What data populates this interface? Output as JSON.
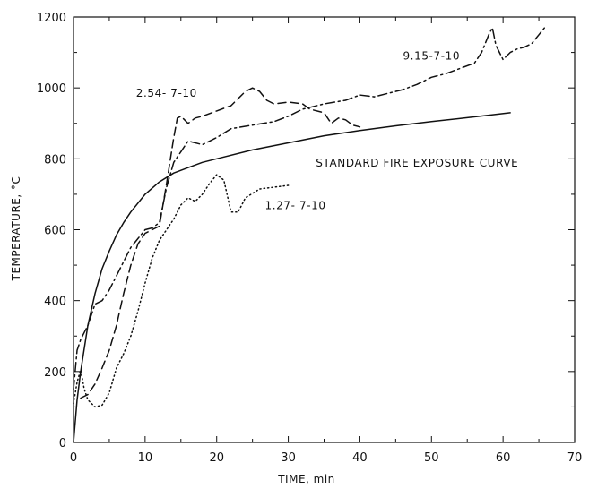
{
  "chart_data": {
    "type": "line",
    "xlabel": "TIME, min",
    "ylabel": "TEMPERATURE, °C",
    "xlim": [
      0,
      70
    ],
    "ylim": [
      0,
      1200
    ],
    "xticks": [
      0,
      10,
      20,
      30,
      40,
      50,
      60,
      70
    ],
    "yticks": [
      0,
      200,
      400,
      600,
      800,
      1000,
      1200
    ],
    "grid": false,
    "series": [
      {
        "name": "STANDARD FIRE EXPOSURE CURVE",
        "style": "solid",
        "x": [
          0,
          0.5,
          1,
          2,
          3,
          4,
          5,
          6,
          7,
          8,
          10,
          12,
          14,
          16,
          18,
          20,
          25,
          30,
          35,
          40,
          45,
          50,
          55,
          61
        ],
        "y": [
          0,
          120,
          200,
          330,
          420,
          490,
          540,
          585,
          620,
          650,
          700,
          735,
          760,
          775,
          790,
          800,
          825,
          845,
          865,
          880,
          893,
          905,
          916,
          930
        ]
      },
      {
        "name": "2.54-7-10",
        "style": "dashed",
        "x": [
          1,
          2,
          3,
          4,
          5,
          6,
          7,
          8,
          9,
          10,
          11,
          12,
          13,
          14,
          14.5,
          15,
          16,
          17,
          18,
          20,
          22,
          24,
          25,
          26,
          27,
          28,
          30,
          32,
          33,
          35,
          36,
          37,
          38,
          39,
          40
        ],
        "y": [
          125,
          135,
          165,
          210,
          260,
          330,
          420,
          500,
          560,
          590,
          600,
          610,
          730,
          860,
          915,
          920,
          900,
          915,
          920,
          935,
          950,
          990,
          1000,
          990,
          965,
          955,
          960,
          955,
          940,
          930,
          900,
          915,
          910,
          895,
          890
        ]
      },
      {
        "name": "9.15-7-10",
        "style": "dashdot",
        "x": [
          0,
          0.5,
          1,
          2,
          3,
          4,
          5,
          6,
          7,
          8,
          9,
          10,
          11,
          12,
          13,
          14,
          15,
          16,
          18,
          20,
          22,
          25,
          28,
          30,
          32,
          35,
          38,
          40,
          42,
          44,
          46,
          48,
          50,
          52,
          54,
          56,
          57,
          58,
          58.5,
          59,
          60,
          61,
          62,
          63,
          64,
          65,
          66
        ],
        "y": [
          150,
          260,
          290,
          330,
          390,
          400,
          430,
          470,
          510,
          550,
          575,
          600,
          605,
          620,
          720,
          790,
          820,
          850,
          840,
          860,
          885,
          895,
          905,
          920,
          940,
          955,
          965,
          980,
          975,
          985,
          995,
          1010,
          1030,
          1040,
          1055,
          1070,
          1100,
          1150,
          1170,
          1120,
          1080,
          1100,
          1110,
          1115,
          1125,
          1150,
          1175
        ]
      },
      {
        "name": "1.27-7-10",
        "style": "dotted",
        "x": [
          0,
          0.5,
          1,
          1.5,
          2,
          3,
          4,
          5,
          6,
          7,
          8,
          9,
          10,
          11,
          12,
          13,
          14,
          15,
          16,
          17,
          18,
          19,
          20,
          21,
          22,
          23,
          24,
          26,
          28,
          30
        ],
        "y": [
          110,
          170,
          205,
          150,
          120,
          100,
          105,
          140,
          210,
          250,
          300,
          370,
          450,
          520,
          570,
          600,
          630,
          670,
          690,
          680,
          700,
          730,
          755,
          740,
          650,
          650,
          690,
          715,
          720,
          725
        ]
      }
    ],
    "annotations": [
      {
        "text": "STANDARD FIRE EXPOSURE CURVE",
        "x": 48,
        "y": 778
      },
      {
        "text": "2.54- 7-10",
        "x": 13,
        "y": 975
      },
      {
        "text": "9.15-7-10",
        "x": 50,
        "y": 1080
      },
      {
        "text": "1.27- 7-10",
        "x": 31,
        "y": 658
      }
    ]
  }
}
